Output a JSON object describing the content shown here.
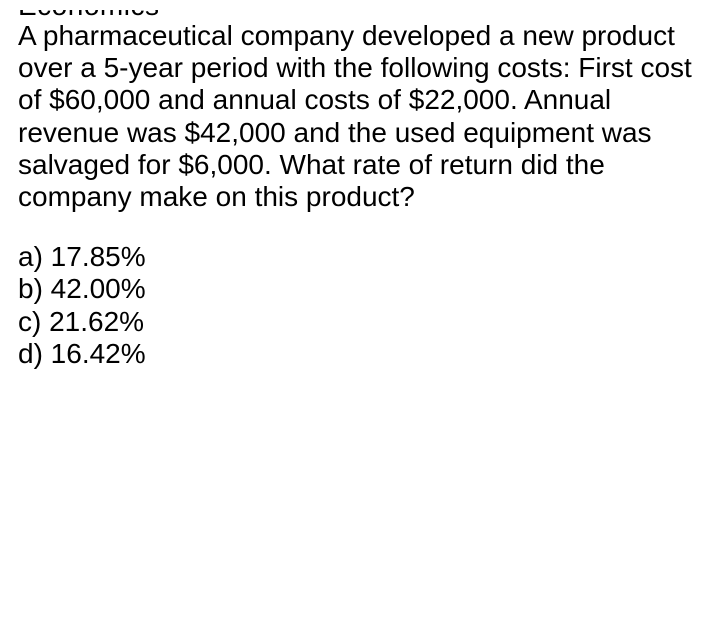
{
  "cutoff_header": "Economics",
  "question": "A pharmaceutical company developed a new product over a 5-year period with the following costs: First cost of $60,000 and annual costs of $22,000. Annual revenue was $42,000 and the used equipment was salvaged for $6,000. What rate of return did the company make on this product?",
  "options": {
    "a": "a) 17.85%",
    "b": "b) 42.00%",
    "c": "c) 21.62%",
    "d": "d) 16.42%"
  },
  "styling": {
    "background_color": "#ffffff",
    "text_color": "#000000",
    "font_family": "Arial, Helvetica, sans-serif",
    "question_fontsize": 28,
    "option_fontsize": 28,
    "line_height": 1.15
  }
}
